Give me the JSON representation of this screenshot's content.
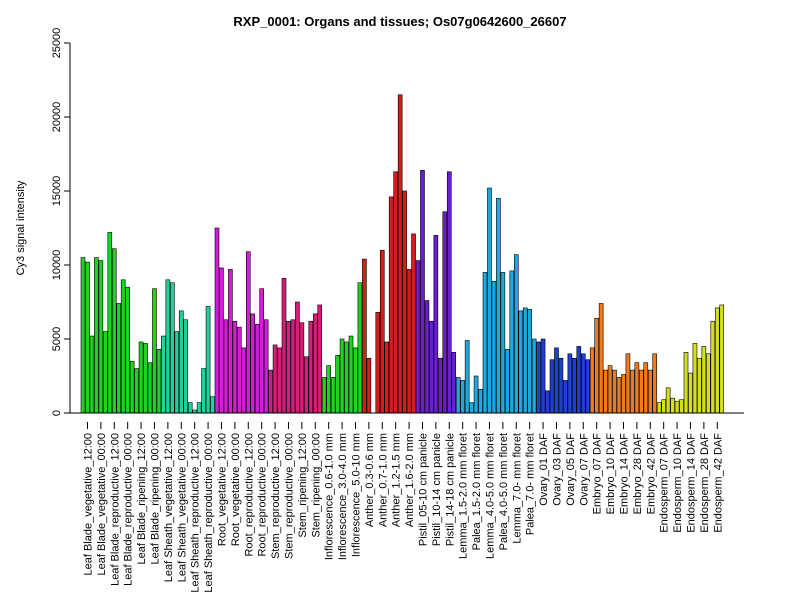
{
  "chart_data": {
    "type": "bar",
    "title": "RXP_0001: Organs and tissues; Os07g0642600_26607",
    "xlabel": "",
    "ylabel": "Cy3 signal intensity",
    "ylim": [
      0,
      25000
    ],
    "y_ticks": [
      0,
      5000,
      10000,
      15000,
      20000,
      25000
    ],
    "grid": false,
    "legend": "none",
    "categories": [
      "Leaf Blade_vegetative_12:00",
      "Leaf Blade_vegetative_00:00",
      "Leaf Blade_reproductive_12:00",
      "Leaf Blade_reproductive_00:00",
      "Leaf Blade_ripening_12:00",
      "Leaf Blade_ripening_00:00",
      "Leaf Sheath_vegetative_12:00",
      "Leaf Sheath_vegetative_00:00",
      "Leaf Sheath_reproductive_12:00",
      "Leaf Sheath_reproductive_00:00",
      "Root_vegetative_12:00",
      "Root_vegetative_00:00",
      "Root_reproductive_12:00",
      "Root_reproductive_00:00",
      "Stem_reproductive_12:00",
      "Stem_reproductive_00:00",
      "Stem_ripening_12:00",
      "Stem_ripening_00:00",
      "Inflorescence_0.6-1.0 mm",
      "Inflorescence_3.0-4.0 mm",
      "Inflorescence_5.0-10 mm",
      "Anther_0.3-0.6 mm",
      "Anther_0.7-1.0 mm",
      "Anther_1.2-1.5 mm",
      "Anther_1.6-2.0 mm",
      "Pistil_05-10 cm panicle",
      "Pistil_10-14 cm panicle",
      "Pistil_14-18 cm panicle",
      "Lemma_1.5-2.0 mm floret",
      "Palea_1.5-2.0 mm floret",
      "Lemma_4.0-5.0 mm floret",
      "Palea_4.0-5.0 mm floret",
      "Lemma_7.0- mm floret",
      "Palea_7.0- mm floret",
      "Ovary_01 DAF",
      "Ovary_03 DAF",
      "Ovary_05 DAF",
      "Ovary_07 DAF",
      "Embryo_07 DAF",
      "Embryo_10 DAF",
      "Embryo_14 DAF",
      "Embryo_28 DAF",
      "Embryo_42 DAF",
      "Endosperm_07 DAF",
      "Endosperm_10 DAF",
      "Endosperm_14 DAF",
      "Endosperm_28 DAF",
      "Endosperm_42 DAF"
    ],
    "values": [
      [
        10500,
        10200,
        5200
      ],
      [
        10500,
        10300,
        5500
      ],
      [
        12200,
        11100,
        7400
      ],
      [
        9000,
        8500,
        3500
      ],
      [
        3000,
        4800,
        4700
      ],
      [
        3400,
        8400,
        4300
      ],
      [
        5200,
        9000,
        8800
      ],
      [
        5500,
        6900,
        6300
      ],
      [
        700,
        200,
        700
      ],
      [
        3000,
        7200,
        1100
      ],
      [
        12500,
        9800,
        6300
      ],
      [
        9700,
        6200,
        5800
      ],
      [
        4400,
        10900,
        6700
      ],
      [
        6000,
        8400,
        6300
      ],
      [
        2900,
        4600,
        4400
      ],
      [
        9100,
        6200,
        6300
      ],
      [
        7500,
        6100,
        3800
      ],
      [
        6200,
        6700,
        7300
      ],
      [
        2400,
        3200,
        2400
      ],
      [
        3900,
        5000,
        4800
      ],
      [
        5200,
        4400,
        8800
      ],
      [
        10400,
        3700,
        0
      ],
      [
        6800,
        11000,
        4800
      ],
      [
        14600,
        16300,
        21500
      ],
      [
        15000,
        9700,
        12100
      ],
      [
        10300,
        16400,
        7600
      ],
      [
        6200,
        12000,
        3700
      ],
      [
        13600,
        16300,
        4100
      ],
      [
        2400,
        2200,
        4900
      ],
      [
        700,
        2500,
        1600
      ],
      [
        9500,
        15200,
        8900
      ],
      [
        14500,
        9500,
        4300
      ],
      [
        9600,
        10700,
        6900
      ],
      [
        7100,
        7000,
        5000
      ],
      [
        4800,
        5000,
        1500
      ],
      [
        3600,
        4400,
        3700
      ],
      [
        2200,
        4000,
        3700
      ],
      [
        4500,
        4000,
        3600
      ],
      [
        4400,
        6400,
        7400
      ],
      [
        2900,
        3200,
        2900
      ],
      [
        2400,
        2600,
        4000
      ],
      [
        2900,
        3400,
        2900
      ],
      [
        3400,
        2900,
        4000
      ],
      [
        700,
        900,
        1700
      ],
      [
        1000,
        800,
        900
      ],
      [
        4100,
        2700,
        4700
      ],
      [
        3700,
        4500,
        4000
      ],
      [
        6200,
        7100,
        7300
      ]
    ],
    "colors": {
      "leaf_blade": "#1ed41e",
      "leaf_sheath": "#1ed49a",
      "root": "#d41ed4",
      "stem": "#d41e7a",
      "inflorescence": "#1ed41e",
      "anther": "#d41e1e",
      "pistil": "#6a1ed4",
      "lemma_palea": "#1ea8e0",
      "ovary": "#1e3ed4",
      "embryo": "#f07a1e",
      "endosperm": "#d4e01e"
    },
    "category_colors": [
      "leaf_blade",
      "leaf_blade",
      "leaf_blade",
      "leaf_blade",
      "leaf_blade",
      "leaf_blade",
      "leaf_sheath",
      "leaf_sheath",
      "leaf_sheath",
      "leaf_sheath",
      "root",
      "root",
      "root",
      "root",
      "stem",
      "stem",
      "stem",
      "stem",
      "inflorescence",
      "inflorescence",
      "inflorescence",
      "anther",
      "anther",
      "anther",
      "anther",
      "pistil",
      "pistil",
      "pistil",
      "lemma_palea",
      "lemma_palea",
      "lemma_palea",
      "lemma_palea",
      "lemma_palea",
      "lemma_palea",
      "ovary",
      "ovary",
      "ovary",
      "ovary",
      "embryo",
      "embryo",
      "embryo",
      "embryo",
      "embryo",
      "endosperm",
      "endosperm",
      "endosperm",
      "endosperm",
      "endosperm"
    ]
  }
}
